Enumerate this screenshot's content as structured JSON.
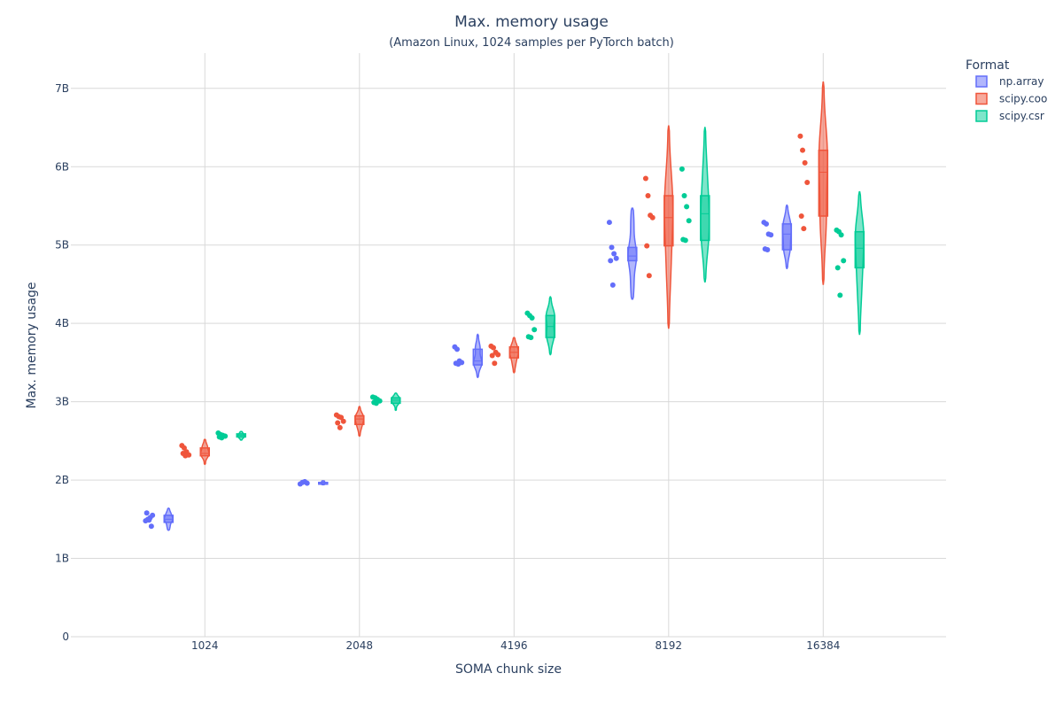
{
  "chart_data": {
    "type": "violin",
    "title": "Max. memory usage",
    "subtitle": "(Amazon Linux, 1024 samples per PyTorch batch)",
    "xlabel": "SOMA chunk size",
    "ylabel": "Max. memory usage",
    "categories": [
      "1024",
      "2048",
      "4196",
      "8192",
      "16384"
    ],
    "ylim": [
      0,
      7.45
    ],
    "yticks": [
      0,
      1,
      2,
      3,
      4,
      5,
      6,
      7
    ],
    "ytick_labels": [
      "0",
      "1B",
      "2B",
      "3B",
      "4B",
      "5B",
      "6B",
      "7B"
    ],
    "grid": true,
    "legend": {
      "title": "Format",
      "placement": "top-right"
    },
    "series": [
      {
        "name": "np.array",
        "color": "#636efa",
        "groups": [
          {
            "category": "1024",
            "points": [
              1.48,
              1.5,
              1.52,
              1.55,
              1.58,
              1.49,
              1.41
            ],
            "violin_range": [
              1.36,
              1.64
            ],
            "box": [
              1.46,
              1.5,
              1.55
            ]
          },
          {
            "category": "2048",
            "points": [
              1.95,
              1.97,
              1.98,
              1.96
            ],
            "violin_range": [
              1.94,
              1.99
            ],
            "box": [
              1.95,
              1.965,
              1.97
            ]
          },
          {
            "category": "4196",
            "points": [
              3.7,
              3.67,
              3.52,
              3.5,
              3.49,
              3.48
            ],
            "violin_range": [
              3.31,
              3.86
            ],
            "box": [
              3.47,
              3.52,
              3.67
            ]
          },
          {
            "category": "8192",
            "points": [
              5.29,
              4.97,
              4.89,
              4.83,
              4.8,
              4.49
            ],
            "violin_range": [
              4.31,
              5.47
            ],
            "box": [
              4.8,
              4.86,
              4.97
            ]
          },
          {
            "category": "16384",
            "points": [
              5.29,
              5.27,
              5.14,
              5.13,
              4.95,
              4.94
            ],
            "violin_range": [
              4.7,
              5.51
            ],
            "box": [
              4.94,
              5.14,
              5.27
            ]
          }
        ]
      },
      {
        "name": "scipy.coo",
        "color": "#ef553b",
        "groups": [
          {
            "category": "1024",
            "points": [
              2.44,
              2.41,
              2.36,
              2.32,
              2.34,
              2.31
            ],
            "violin_range": [
              2.2,
              2.52
            ],
            "box": [
              2.31,
              2.34,
              2.41
            ]
          },
          {
            "category": "2048",
            "points": [
              2.83,
              2.81,
              2.8,
              2.75,
              2.73,
              2.67
            ],
            "violin_range": [
              2.56,
              2.94
            ],
            "box": [
              2.71,
              2.78,
              2.82
            ]
          },
          {
            "category": "4196",
            "points": [
              3.71,
              3.69,
              3.63,
              3.6,
              3.59,
              3.49
            ],
            "violin_range": [
              3.37,
              3.82
            ],
            "box": [
              3.56,
              3.63,
              3.7
            ]
          },
          {
            "category": "8192",
            "points": [
              5.85,
              5.63,
              5.38,
              5.35,
              4.99,
              4.61
            ],
            "violin_range": [
              3.94,
              6.52
            ],
            "box": [
              4.99,
              5.35,
              5.63
            ]
          },
          {
            "category": "16384",
            "points": [
              6.39,
              6.21,
              6.05,
              5.8,
              5.37,
              5.21
            ],
            "violin_range": [
              4.5,
              7.08
            ],
            "box": [
              5.37,
              5.93,
              6.21
            ]
          }
        ]
      },
      {
        "name": "scipy.csr",
        "color": "#00cc96",
        "groups": [
          {
            "category": "1024",
            "points": [
              2.6,
              2.58,
              2.57,
              2.56,
              2.55,
              2.54
            ],
            "violin_range": [
              2.51,
              2.62
            ],
            "box": [
              2.55,
              2.57,
              2.59
            ]
          },
          {
            "category": "2048",
            "points": [
              3.06,
              3.05,
              3.03,
              3.01,
              2.99,
              2.98
            ],
            "violin_range": [
              2.89,
              3.11
            ],
            "box": [
              2.98,
              3.02,
              3.05
            ]
          },
          {
            "category": "4196",
            "points": [
              4.13,
              4.1,
              4.07,
              3.92,
              3.83,
              3.82
            ],
            "violin_range": [
              3.6,
              4.34
            ],
            "box": [
              3.82,
              3.96,
              4.1
            ]
          },
          {
            "category": "8192",
            "points": [
              5.97,
              5.63,
              5.49,
              5.31,
              5.07,
              5.06
            ],
            "violin_range": [
              4.53,
              6.5
            ],
            "box": [
              5.06,
              5.4,
              5.63
            ]
          },
          {
            "category": "16384",
            "points": [
              5.19,
              5.17,
              5.13,
              4.8,
              4.71,
              4.36
            ],
            "violin_range": [
              3.86,
              5.68
            ],
            "box": [
              4.71,
              4.96,
              5.17
            ]
          }
        ]
      }
    ]
  }
}
